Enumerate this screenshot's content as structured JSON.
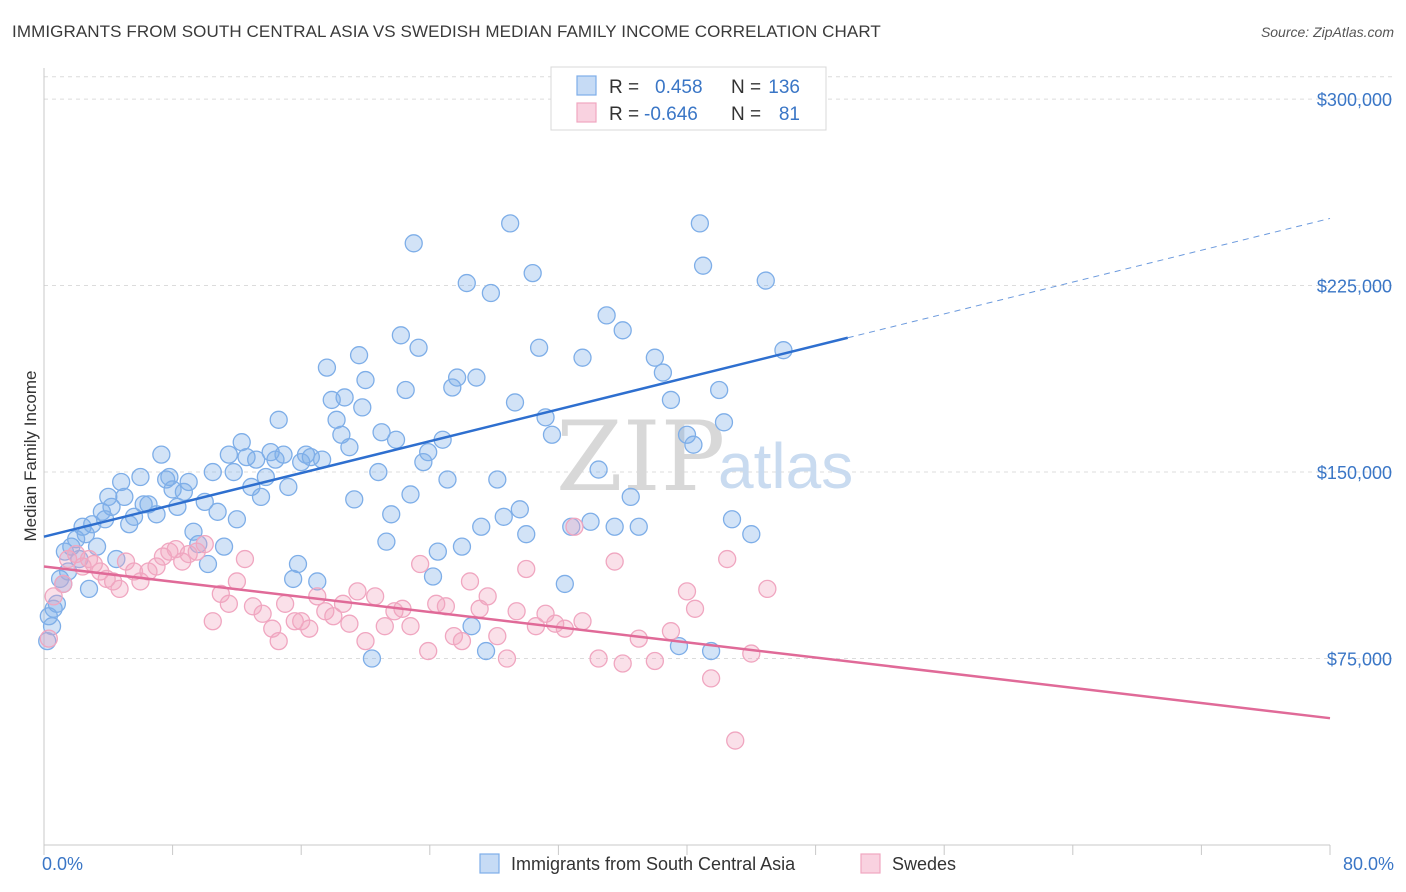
{
  "header": {
    "title": "IMMIGRANTS FROM SOUTH CENTRAL ASIA VS SWEDISH MEDIAN FAMILY INCOME CORRELATION CHART",
    "source": "Source: ZipAtlas.com"
  },
  "watermark": {
    "zip": "ZIP",
    "atlas": "atlas"
  },
  "legend": {
    "r_label": "R =",
    "n_label": "N =",
    "rows": [
      {
        "r": "0.458",
        "n": "136",
        "color": "#7eaee8"
      },
      {
        "r": "-0.646",
        "n": "81",
        "color": "#f0a6c0"
      }
    ]
  },
  "bottom_legend": [
    {
      "label": "Immigrants from South Central Asia",
      "color": "#7eaee8"
    },
    {
      "label": "Swedes",
      "color": "#f0a6c0"
    }
  ],
  "chart_data": {
    "type": "scatter",
    "title": "IMMIGRANTS FROM SOUTH CENTRAL ASIA VS SWEDISH MEDIAN FAMILY INCOME CORRELATION CHART",
    "xlabel": "",
    "ylabel": "Median Family Income",
    "xlim": [
      0,
      80
    ],
    "ylim": [
      0,
      312500
    ],
    "x_tick_labels": [
      "0.0%",
      "80.0%"
    ],
    "y_ticks": [
      75000,
      150000,
      225000,
      300000
    ],
    "y_tick_labels": [
      "$75,000",
      "$150,000",
      "$225,000",
      "$300,000"
    ],
    "grid": true,
    "legend_position": "top-center",
    "series": [
      {
        "name": "Immigrants from South Central Asia",
        "color": "#7eaee8",
        "line_color": "#2e6fcf",
        "trend": {
          "x0": 0,
          "y0": 124000,
          "x1": 50,
          "y1": 204000,
          "x_dash_end": 80,
          "y_dash_end": 252000
        },
        "points": [
          [
            0.3,
            92000
          ],
          [
            0.5,
            88000
          ],
          [
            0.6,
            95000
          ],
          [
            0.8,
            97000
          ],
          [
            1.0,
            107000
          ],
          [
            1.2,
            105000
          ],
          [
            1.3,
            118000
          ],
          [
            1.5,
            110000
          ],
          [
            1.7,
            120000
          ],
          [
            2.0,
            123000
          ],
          [
            2.2,
            115000
          ],
          [
            2.4,
            128000
          ],
          [
            2.6,
            125000
          ],
          [
            2.8,
            103000
          ],
          [
            3.0,
            129000
          ],
          [
            3.3,
            120000
          ],
          [
            3.6,
            134000
          ],
          [
            3.8,
            131000
          ],
          [
            4.0,
            140000
          ],
          [
            4.2,
            136000
          ],
          [
            4.5,
            115000
          ],
          [
            4.8,
            146000
          ],
          [
            5.0,
            140000
          ],
          [
            5.3,
            129000
          ],
          [
            5.6,
            132000
          ],
          [
            6.0,
            148000
          ],
          [
            6.2,
            137000
          ],
          [
            6.5,
            137000
          ],
          [
            7.0,
            133000
          ],
          [
            7.3,
            157000
          ],
          [
            7.6,
            147000
          ],
          [
            7.8,
            148000
          ],
          [
            8.0,
            143000
          ],
          [
            8.3,
            136000
          ],
          [
            8.7,
            142000
          ],
          [
            9.0,
            146000
          ],
          [
            9.3,
            126000
          ],
          [
            9.6,
            121000
          ],
          [
            10.0,
            138000
          ],
          [
            10.2,
            113000
          ],
          [
            10.5,
            150000
          ],
          [
            10.8,
            134000
          ],
          [
            11.2,
            120000
          ],
          [
            11.5,
            157000
          ],
          [
            11.8,
            150000
          ],
          [
            12.0,
            131000
          ],
          [
            12.3,
            162000
          ],
          [
            12.6,
            156000
          ],
          [
            12.9,
            144000
          ],
          [
            13.2,
            155000
          ],
          [
            13.5,
            140000
          ],
          [
            13.8,
            148000
          ],
          [
            14.1,
            158000
          ],
          [
            14.4,
            155000
          ],
          [
            14.6,
            171000
          ],
          [
            14.9,
            157000
          ],
          [
            15.2,
            144000
          ],
          [
            15.5,
            107000
          ],
          [
            15.8,
            113000
          ],
          [
            16.0,
            154000
          ],
          [
            16.3,
            157000
          ],
          [
            16.6,
            156000
          ],
          [
            17.0,
            106000
          ],
          [
            17.3,
            155000
          ],
          [
            17.6,
            192000
          ],
          [
            17.9,
            179000
          ],
          [
            18.2,
            171000
          ],
          [
            18.5,
            165000
          ],
          [
            18.7,
            180000
          ],
          [
            19.0,
            160000
          ],
          [
            19.3,
            139000
          ],
          [
            19.6,
            197000
          ],
          [
            19.8,
            176000
          ],
          [
            20.0,
            187000
          ],
          [
            20.4,
            75000
          ],
          [
            20.8,
            150000
          ],
          [
            21.0,
            166000
          ],
          [
            21.3,
            122000
          ],
          [
            21.6,
            133000
          ],
          [
            21.9,
            163000
          ],
          [
            22.2,
            205000
          ],
          [
            22.5,
            183000
          ],
          [
            22.8,
            141000
          ],
          [
            23.0,
            242000
          ],
          [
            23.3,
            200000
          ],
          [
            23.6,
            154000
          ],
          [
            23.9,
            158000
          ],
          [
            24.2,
            108000
          ],
          [
            24.5,
            118000
          ],
          [
            24.8,
            163000
          ],
          [
            25.1,
            147000
          ],
          [
            25.4,
            184000
          ],
          [
            25.7,
            188000
          ],
          [
            26.0,
            120000
          ],
          [
            26.3,
            226000
          ],
          [
            26.6,
            88000
          ],
          [
            26.9,
            188000
          ],
          [
            27.2,
            128000
          ],
          [
            27.5,
            78000
          ],
          [
            27.8,
            222000
          ],
          [
            28.2,
            147000
          ],
          [
            28.6,
            132000
          ],
          [
            29.0,
            250000
          ],
          [
            29.3,
            178000
          ],
          [
            29.6,
            135000
          ],
          [
            30.0,
            125000
          ],
          [
            30.4,
            230000
          ],
          [
            30.8,
            200000
          ],
          [
            31.2,
            172000
          ],
          [
            31.6,
            165000
          ],
          [
            32.4,
            105000
          ],
          [
            32.8,
            128000
          ],
          [
            33.5,
            196000
          ],
          [
            34.0,
            130000
          ],
          [
            34.5,
            151000
          ],
          [
            35.0,
            213000
          ],
          [
            35.5,
            128000
          ],
          [
            36.0,
            207000
          ],
          [
            36.5,
            140000
          ],
          [
            37.0,
            128000
          ],
          [
            38.0,
            196000
          ],
          [
            38.5,
            190000
          ],
          [
            39.0,
            179000
          ],
          [
            39.5,
            80000
          ],
          [
            40.0,
            165000
          ],
          [
            40.4,
            161000
          ],
          [
            40.8,
            250000
          ],
          [
            41.0,
            233000
          ],
          [
            41.5,
            78000
          ],
          [
            42.0,
            183000
          ],
          [
            42.3,
            170000
          ],
          [
            42.8,
            131000
          ],
          [
            44.0,
            125000
          ],
          [
            44.9,
            227000
          ],
          [
            46.0,
            199000
          ],
          [
            0.2,
            82000
          ]
        ]
      },
      {
        "name": "Swedes",
        "color": "#f0a6c0",
        "line_color": "#e06a98",
        "trend": {
          "x0": 0,
          "y0": 112000,
          "x1": 80,
          "y1": 51000
        },
        "points": [
          [
            0.3,
            83000
          ],
          [
            0.6,
            100000
          ],
          [
            1.2,
            105000
          ],
          [
            1.5,
            115000
          ],
          [
            2.0,
            117000
          ],
          [
            2.4,
            112000
          ],
          [
            2.8,
            115000
          ],
          [
            3.1,
            113000
          ],
          [
            3.5,
            110000
          ],
          [
            3.9,
            107000
          ],
          [
            4.3,
            106000
          ],
          [
            4.7,
            103000
          ],
          [
            5.1,
            114000
          ],
          [
            5.6,
            110000
          ],
          [
            6.0,
            106000
          ],
          [
            6.5,
            110000
          ],
          [
            7.0,
            112000
          ],
          [
            7.4,
            116000
          ],
          [
            7.8,
            118000
          ],
          [
            8.2,
            119000
          ],
          [
            8.6,
            114000
          ],
          [
            9.0,
            117000
          ],
          [
            9.5,
            118000
          ],
          [
            10.0,
            121000
          ],
          [
            10.5,
            90000
          ],
          [
            11.0,
            101000
          ],
          [
            11.5,
            97000
          ],
          [
            12.0,
            106000
          ],
          [
            12.5,
            115000
          ],
          [
            13.0,
            96000
          ],
          [
            13.6,
            93000
          ],
          [
            14.2,
            87000
          ],
          [
            14.6,
            82000
          ],
          [
            15.0,
            97000
          ],
          [
            15.6,
            90000
          ],
          [
            16.0,
            90000
          ],
          [
            16.5,
            87000
          ],
          [
            17.0,
            100000
          ],
          [
            17.5,
            94000
          ],
          [
            18.0,
            92000
          ],
          [
            18.6,
            97000
          ],
          [
            19.0,
            89000
          ],
          [
            19.5,
            102000
          ],
          [
            20.0,
            82000
          ],
          [
            20.6,
            100000
          ],
          [
            21.2,
            88000
          ],
          [
            21.8,
            94000
          ],
          [
            22.3,
            95000
          ],
          [
            22.8,
            88000
          ],
          [
            23.4,
            113000
          ],
          [
            23.9,
            78000
          ],
          [
            24.4,
            97000
          ],
          [
            25.0,
            96000
          ],
          [
            25.5,
            84000
          ],
          [
            26.0,
            82000
          ],
          [
            26.5,
            106000
          ],
          [
            27.1,
            95000
          ],
          [
            27.6,
            100000
          ],
          [
            28.2,
            84000
          ],
          [
            28.8,
            75000
          ],
          [
            29.4,
            94000
          ],
          [
            30.0,
            111000
          ],
          [
            30.6,
            88000
          ],
          [
            31.2,
            93000
          ],
          [
            31.8,
            89000
          ],
          [
            32.4,
            87000
          ],
          [
            33.0,
            128000
          ],
          [
            33.5,
            90000
          ],
          [
            34.5,
            75000
          ],
          [
            35.5,
            114000
          ],
          [
            36.0,
            73000
          ],
          [
            37.0,
            83000
          ],
          [
            38.0,
            74000
          ],
          [
            39.0,
            86000
          ],
          [
            40.0,
            102000
          ],
          [
            40.5,
            95000
          ],
          [
            41.5,
            67000
          ],
          [
            42.5,
            115000
          ],
          [
            43.0,
            42000
          ],
          [
            44.0,
            77000
          ],
          [
            45.0,
            103000
          ]
        ]
      }
    ]
  }
}
